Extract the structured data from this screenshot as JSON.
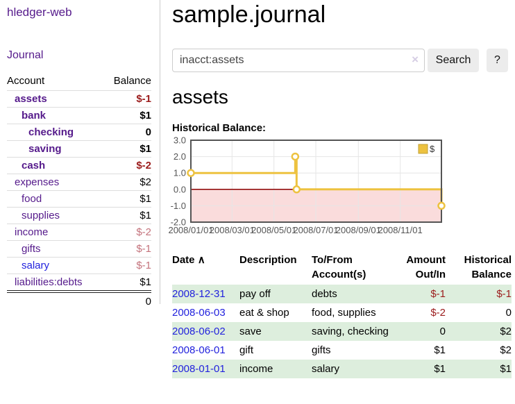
{
  "sidebar": {
    "brand": "hledger-web",
    "nav": [
      {
        "label": "Journal"
      }
    ],
    "table": {
      "col_account": "Account",
      "col_balance": "Balance",
      "rows": [
        {
          "account": "assets",
          "balance": "$-1",
          "level": 1,
          "bold": true,
          "balance_class": "neg-strong"
        },
        {
          "account": "bank",
          "balance": "$1",
          "level": 2,
          "bold": true,
          "balance_class": ""
        },
        {
          "account": "checking",
          "balance": "0",
          "level": 3,
          "bold": true,
          "balance_class": ""
        },
        {
          "account": "saving",
          "balance": "$1",
          "level": 3,
          "bold": true,
          "balance_class": ""
        },
        {
          "account": "cash",
          "balance": "$-2",
          "level": 2,
          "bold": true,
          "balance_class": "neg-strong"
        },
        {
          "account": "expenses",
          "balance": "$2",
          "level": 1,
          "bold": false,
          "balance_class": ""
        },
        {
          "account": "food",
          "balance": "$1",
          "level": 2,
          "bold": false,
          "balance_class": ""
        },
        {
          "account": "supplies",
          "balance": "$1",
          "level": 2,
          "bold": false,
          "balance_class": ""
        },
        {
          "account": "income",
          "balance": "$-2",
          "level": 1,
          "bold": false,
          "balance_class": "neg-soft"
        },
        {
          "account": "gifts",
          "balance": "$-1",
          "level": 2,
          "bold": false,
          "balance_class": "neg-soft"
        },
        {
          "account": "salary",
          "balance": "$-1",
          "level": 2,
          "bold": false,
          "balance_class": "neg-soft",
          "link_class": "blue"
        },
        {
          "account": "liabilities:debts",
          "balance": "$1",
          "level": 1,
          "bold": false,
          "balance_class": ""
        }
      ],
      "total": "0"
    }
  },
  "header": {
    "title": "sample.journal"
  },
  "search": {
    "value": "inacct:assets",
    "clear_icon": "×",
    "button_label": "Search",
    "help_label": "?"
  },
  "account_page": {
    "title": "assets",
    "chart_label": "Historical Balance:"
  },
  "chart_data": {
    "type": "line",
    "title": "Historical Balance",
    "step": true,
    "x_type": "date",
    "xlim_days": [
      0,
      365
    ],
    "ylim": [
      -2,
      3
    ],
    "yticks": [
      {
        "value": -2,
        "label": "-2.0"
      },
      {
        "value": -1,
        "label": "-1.0"
      },
      {
        "value": 0,
        "label": "0.0"
      },
      {
        "value": 1,
        "label": "1.0"
      },
      {
        "value": 2,
        "label": "2.0"
      },
      {
        "value": 3,
        "label": "3.0"
      }
    ],
    "xticks": [
      {
        "day": 0,
        "label": "2008/01/01"
      },
      {
        "day": 60,
        "label": "2008/03/01"
      },
      {
        "day": 121,
        "label": "2008/05/01"
      },
      {
        "day": 182,
        "label": "2008/07/01"
      },
      {
        "day": 244,
        "label": "2008/09/01"
      },
      {
        "day": 305,
        "label": "2008/11/01"
      }
    ],
    "series": [
      {
        "name": "$",
        "color": "#edc240",
        "points": [
          {
            "date": "2008-01-01",
            "day": 0,
            "value": 1
          },
          {
            "date": "2008-06-01",
            "day": 152,
            "value": 2
          },
          {
            "date": "2008-06-03",
            "day": 154,
            "value": 0
          },
          {
            "date": "2008-12-31",
            "day": 365,
            "value": -1
          }
        ]
      }
    ],
    "legend": {
      "position": "top-right",
      "label": "$"
    },
    "grid": {
      "border_color": "#545454",
      "grid_color": "#e6e6e6",
      "tick_label_color": "#545454",
      "negative_fill": "#fadcdc",
      "zero_line_color": "#8b0000"
    }
  },
  "register": {
    "headers": {
      "date": "Date",
      "sort_icon": "∧",
      "description": "Description",
      "tofrom_line1": "To/From",
      "tofrom_line2": "Account(s)",
      "amount_line1": "Amount",
      "amount_line2": "Out/In",
      "balance_line1": "Historical",
      "balance_line2": "Balance"
    },
    "rows": [
      {
        "date": "2008-12-31",
        "description": "pay off",
        "accounts": "debts",
        "amount": "$-1",
        "amount_class": "neg-strong",
        "balance": "$-1",
        "balance_class": "neg-strong",
        "shaded": true
      },
      {
        "date": "2008-06-03",
        "description": "eat & shop",
        "accounts": "food, supplies",
        "amount": "$-2",
        "amount_class": "neg-strong",
        "balance": "0",
        "balance_class": "",
        "shaded": false
      },
      {
        "date": "2008-06-02",
        "description": "save",
        "accounts": "saving, checking",
        "amount": "0",
        "amount_class": "",
        "balance": "$2",
        "balance_class": "",
        "shaded": true
      },
      {
        "date": "2008-06-01",
        "description": "gift",
        "accounts": "gifts",
        "amount": "$1",
        "amount_class": "",
        "balance": "$2",
        "balance_class": "",
        "shaded": false
      },
      {
        "date": "2008-01-01",
        "description": "income",
        "accounts": "salary",
        "amount": "$1",
        "amount_class": "",
        "balance": "$1",
        "balance_class": "",
        "shaded": true
      }
    ]
  }
}
